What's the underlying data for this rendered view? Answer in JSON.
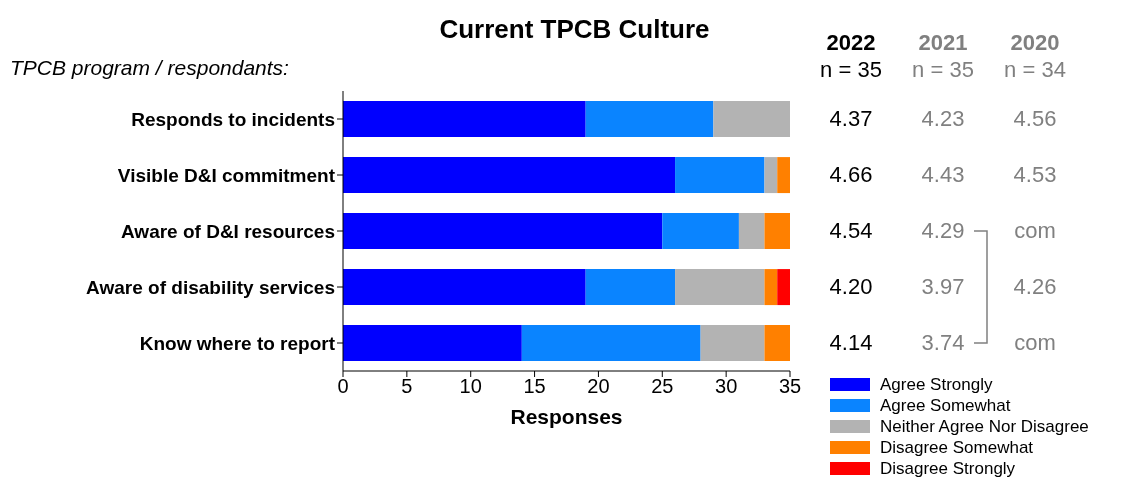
{
  "chart_data": {
    "type": "bar",
    "orientation": "horizontal",
    "stacked": true,
    "title": "Current TPCB Culture",
    "ylabel": "TPCB program / respondants:",
    "xlabel": "Responses",
    "categories": [
      "Responds to incidents",
      "Visible D&I commitment",
      "Aware of D&I resources",
      "Aware of disability services",
      "Know where to report"
    ],
    "series": [
      {
        "name": "Agree Strongly",
        "color": "#0000ff",
        "values": [
          19,
          26,
          25,
          19,
          14
        ]
      },
      {
        "name": "Agree Somewhat",
        "color": "#0a84ff",
        "values": [
          10,
          7,
          6,
          7,
          14
        ]
      },
      {
        "name": "Neither Agree Nor Disagree",
        "color": "#b3b3b3",
        "values": [
          6,
          1,
          2,
          7,
          5
        ]
      },
      {
        "name": "Disagree Somewhat",
        "color": "#ff8000",
        "values": [
          0,
          1,
          2,
          1,
          2
        ]
      },
      {
        "name": "Disagree Strongly",
        "color": "#ff0000",
        "values": [
          0,
          0,
          0,
          1,
          0
        ]
      }
    ],
    "xlim": [
      0,
      35
    ],
    "xticks": [
      0,
      5,
      10,
      15,
      20,
      25,
      30,
      35
    ],
    "legend": "bottom right",
    "annotations": [
      "2022",
      "n = 35",
      "4.37",
      "4.66",
      "4.54",
      "4.20",
      "4.14",
      "2021",
      "n = 35",
      "4.23",
      "4.43",
      "4.29",
      "3.97",
      "3.74",
      "2020",
      "n = 34",
      "4.56",
      "4.53",
      "com",
      "4.26",
      "com"
    ]
  }
}
